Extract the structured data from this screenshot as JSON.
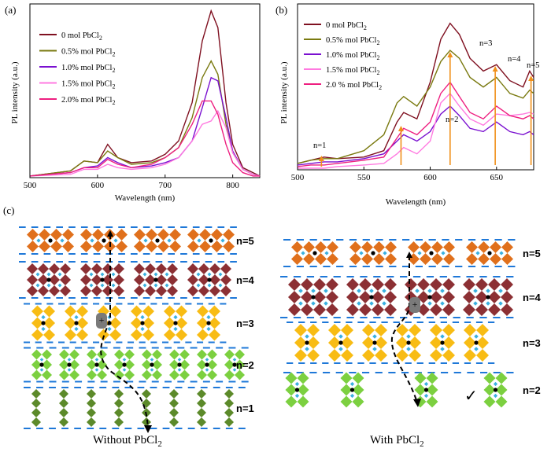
{
  "panels": {
    "a": {
      "label": "(a)",
      "xlabel": "Wavelength (nm)",
      "ylabel": "PL intensity (a.u.)",
      "x_ticks": [
        "500",
        "600",
        "700",
        "800"
      ],
      "legend": [
        {
          "name": "0 mol PbCl",
          "sub": "2",
          "color": "#7f1020"
        },
        {
          "name": "0.5% mol PbCl",
          "sub": "2",
          "color": "#7a7a10"
        },
        {
          "name": "1.0% mol PbCl",
          "sub": "2",
          "color": "#7a10d0"
        },
        {
          "name": "1.5% mol PbCl",
          "sub": "2",
          "color": "#ff7ae0"
        },
        {
          "name": "2.0% mol PbCl",
          "sub": "2",
          "color": "#ee1f80"
        }
      ]
    },
    "b": {
      "label": "(b)",
      "xlabel": "Wavelength (nm)",
      "ylabel": "PL intensity (a.u.)",
      "x_ticks": [
        "500",
        "550",
        "600",
        "650"
      ],
      "legend": [
        {
          "name": "0 mol PbCl",
          "sub": "2",
          "color": "#7f1020"
        },
        {
          "name": "0.5% mol PbCl",
          "sub": "2",
          "color": "#7a7a10"
        },
        {
          "name": "1.0% mol PbCl",
          "sub": "2",
          "color": "#7a10d0"
        },
        {
          "name": "1.5% mol PbCl",
          "sub": "2",
          "color": "#ff7ae0"
        },
        {
          "name": "2.0 % mol PbCl",
          "sub": "2",
          "color": "#ee1f80"
        }
      ],
      "annotations": [
        "n=1",
        "n=2",
        "n=3",
        "n=4",
        "n=5"
      ],
      "arrow_color": "#f0901a"
    },
    "c": {
      "label": "(c)",
      "left_caption": {
        "text": "Without PbCl",
        "sub": "2"
      },
      "right_caption": {
        "text": "With PbCl",
        "sub": "2"
      },
      "left_layers": [
        "n=5",
        "n=4",
        "n=3",
        "n=2",
        "n=1"
      ],
      "right_layers": [
        "n=5",
        "n=4",
        "n=3",
        "n=2"
      ],
      "check_mark": "✓",
      "colors": {
        "n5": "#e0701c",
        "n4": "#8c3034",
        "n3": "#f8bc14",
        "n2": "#7cd040",
        "n1": "#5c8a2a",
        "diamond_inner": "#3ab0e0",
        "ligand": "#1e78d8",
        "center": "#000000"
      }
    }
  },
  "chart_data": [
    {
      "type": "line",
      "title": "",
      "xlabel": "Wavelength (nm)",
      "ylabel": "PL intensity (a.u.)",
      "xlim": [
        500,
        840
      ],
      "series": [
        {
          "name": "0 mol PbCl2",
          "color": "#7f1020",
          "x": [
            500,
            560,
            580,
            600,
            615,
            630,
            650,
            680,
            700,
            720,
            740,
            755,
            768,
            778,
            790,
            800,
            815,
            830,
            840
          ],
          "y": [
            0.01,
            0.04,
            0.1,
            0.09,
            0.2,
            0.12,
            0.09,
            0.1,
            0.14,
            0.22,
            0.45,
            0.82,
            1.0,
            0.9,
            0.45,
            0.2,
            0.06,
            0.03,
            0.01
          ]
        },
        {
          "name": "0.5% mol PbCl2",
          "color": "#7a7a10",
          "x": [
            500,
            560,
            580,
            600,
            615,
            630,
            650,
            680,
            700,
            720,
            740,
            755,
            768,
            778,
            790,
            800,
            815,
            830,
            840
          ],
          "y": [
            0.01,
            0.04,
            0.1,
            0.09,
            0.16,
            0.12,
            0.08,
            0.09,
            0.12,
            0.18,
            0.36,
            0.6,
            0.7,
            0.62,
            0.32,
            0.15,
            0.05,
            0.02,
            0.01
          ]
        },
        {
          "name": "1.0% mol PbCl2",
          "color": "#7a10d0",
          "x": [
            500,
            560,
            580,
            600,
            615,
            630,
            650,
            680,
            700,
            720,
            740,
            755,
            768,
            778,
            790,
            800,
            815,
            830,
            840
          ],
          "y": [
            0.01,
            0.03,
            0.06,
            0.07,
            0.12,
            0.09,
            0.06,
            0.07,
            0.09,
            0.12,
            0.22,
            0.42,
            0.6,
            0.58,
            0.36,
            0.16,
            0.05,
            0.02,
            0.01
          ]
        },
        {
          "name": "1.5% mol PbCl2",
          "color": "#ff7ae0",
          "x": [
            500,
            560,
            580,
            600,
            615,
            630,
            650,
            680,
            700,
            720,
            740,
            755,
            768,
            778,
            790,
            800,
            815,
            830,
            840
          ],
          "y": [
            0.01,
            0.02,
            0.05,
            0.05,
            0.08,
            0.06,
            0.05,
            0.06,
            0.08,
            0.12,
            0.22,
            0.32,
            0.34,
            0.4,
            0.3,
            0.15,
            0.05,
            0.02,
            0.01
          ]
        },
        {
          "name": "2.0% mol PbCl2",
          "color": "#ee1f80",
          "x": [
            500,
            560,
            580,
            600,
            615,
            630,
            650,
            680,
            700,
            720,
            740,
            755,
            768,
            778,
            790,
            800,
            815,
            830,
            840
          ],
          "y": [
            0.01,
            0.03,
            0.06,
            0.06,
            0.11,
            0.08,
            0.06,
            0.08,
            0.12,
            0.18,
            0.32,
            0.46,
            0.46,
            0.38,
            0.2,
            0.09,
            0.03,
            0.01,
            0.01
          ]
        }
      ]
    },
    {
      "type": "line",
      "title": "",
      "xlabel": "Wavelength (nm)",
      "ylabel": "PL intensity (a.u.)",
      "xlim": [
        500,
        678
      ],
      "series": [
        {
          "name": "0 mol PbCl2",
          "color": "#7f1020",
          "x": [
            500,
            510,
            520,
            530,
            550,
            565,
            575,
            580,
            590,
            600,
            608,
            615,
            622,
            630,
            640,
            650,
            660,
            670,
            675,
            678
          ],
          "y": [
            0.04,
            0.06,
            0.08,
            0.07,
            0.08,
            0.12,
            0.3,
            0.36,
            0.32,
            0.55,
            0.82,
            0.92,
            0.85,
            0.7,
            0.62,
            0.66,
            0.56,
            0.52,
            0.62,
            0.58
          ]
        },
        {
          "name": "0.5% mol PbCl2",
          "color": "#7a7a10",
          "x": [
            500,
            510,
            520,
            530,
            550,
            565,
            575,
            580,
            590,
            600,
            608,
            615,
            622,
            630,
            640,
            650,
            660,
            670,
            675,
            678
          ],
          "y": [
            0.04,
            0.06,
            0.07,
            0.07,
            0.12,
            0.22,
            0.42,
            0.46,
            0.4,
            0.52,
            0.68,
            0.75,
            0.7,
            0.58,
            0.52,
            0.58,
            0.48,
            0.45,
            0.5,
            0.48
          ]
        },
        {
          "name": "1.0% mol PbCl2",
          "color": "#7a10d0",
          "x": [
            500,
            510,
            520,
            530,
            550,
            565,
            575,
            580,
            590,
            600,
            608,
            615,
            622,
            630,
            640,
            650,
            660,
            670,
            675,
            678
          ],
          "y": [
            0.03,
            0.04,
            0.05,
            0.05,
            0.07,
            0.1,
            0.18,
            0.22,
            0.18,
            0.24,
            0.35,
            0.4,
            0.34,
            0.26,
            0.24,
            0.3,
            0.24,
            0.22,
            0.24,
            0.22
          ]
        },
        {
          "name": "1.5% mol PbCl2",
          "color": "#ff7ae0",
          "x": [
            500,
            510,
            520,
            530,
            550,
            565,
            575,
            580,
            590,
            600,
            608,
            615,
            622,
            630,
            640,
            650,
            660,
            670,
            675,
            678
          ],
          "y": [
            0.01,
            0.01,
            0.01,
            0.02,
            0.03,
            0.04,
            0.1,
            0.14,
            0.1,
            0.18,
            0.42,
            0.48,
            0.4,
            0.32,
            0.28,
            0.35,
            0.34,
            0.35,
            0.36,
            0.35
          ]
        },
        {
          "name": "2.0% mol PbCl2",
          "color": "#ee1f80",
          "x": [
            500,
            510,
            520,
            530,
            550,
            565,
            575,
            580,
            590,
            600,
            608,
            615,
            622,
            630,
            640,
            650,
            660,
            670,
            675,
            678
          ],
          "y": [
            0.02,
            0.03,
            0.03,
            0.04,
            0.06,
            0.08,
            0.2,
            0.26,
            0.22,
            0.3,
            0.48,
            0.55,
            0.46,
            0.36,
            0.32,
            0.4,
            0.34,
            0.32,
            0.34,
            0.32
          ]
        }
      ]
    }
  ]
}
